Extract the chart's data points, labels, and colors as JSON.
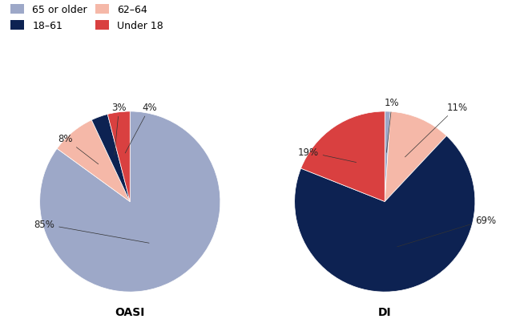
{
  "oasi": {
    "label": "OASI",
    "values": [
      85,
      8,
      3,
      4
    ],
    "pct_labels": [
      "85%",
      "8%",
      "3%",
      "4%"
    ],
    "startangle": 90
  },
  "di": {
    "label": "DI",
    "values": [
      1,
      11,
      69,
      19
    ],
    "pct_labels": [
      "1%",
      "11%",
      "69%",
      "19%"
    ],
    "startangle": 90
  },
  "categories": [
    "65 or older",
    "62–64",
    "18–61",
    "Under 18"
  ],
  "colors": [
    "#9da8c8",
    "#f5b8a8",
    "#0d2252",
    "#d94040"
  ],
  "background_color": "#ffffff",
  "title_fontsize": 10,
  "legend_fontsize": 9,
  "label_fontsize": 8.5
}
